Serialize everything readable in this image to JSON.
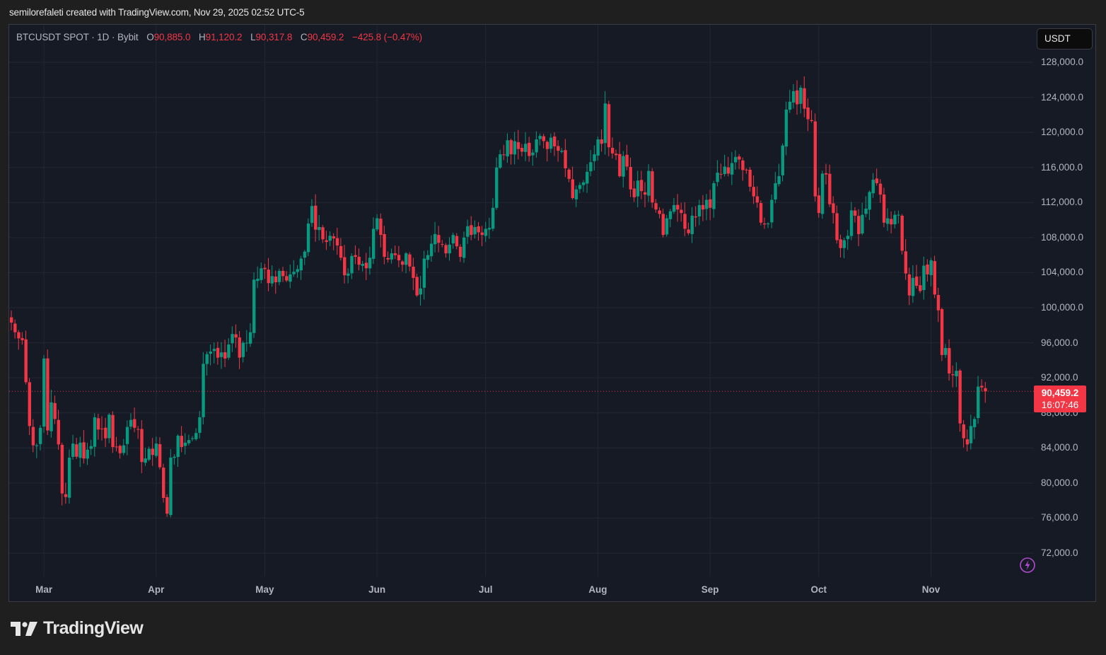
{
  "caption": "semilorefaleti created with TradingView.com, Nov 29, 2025 02:52 UTC-5",
  "legend": {
    "symbol": "BTCUSDT SPOT · 1D · Bybit",
    "open_label": "O",
    "open": "90,885.0",
    "high_label": "H",
    "high": "91,120.2",
    "low_label": "L",
    "low": "90,317.8",
    "close_label": "C",
    "close": "90,459.2",
    "change": "−425.8 (−0.47%)"
  },
  "currency_button": "USDT",
  "last_price": {
    "price": "90,459.2",
    "countdown": "16:07:46"
  },
  "logo_text": "TradingView",
  "colors": {
    "up": "#089981",
    "down": "#f23645",
    "background": "#161a25",
    "grid": "#242733",
    "text": "#b2b5be",
    "accent": "#9c27b0"
  },
  "chart_data": {
    "type": "candlestick",
    "title": "BTCUSDT SPOT · 1D · Bybit",
    "xlabel": "",
    "ylabel": "USDT",
    "ylim": [
      69500,
      131000
    ],
    "grid": true,
    "y_ticks": [
      "128,000.0",
      "124,000.0",
      "120,000.0",
      "116,000.0",
      "112,000.0",
      "108,000.0",
      "104,000.0",
      "100,000.0",
      "96,000.0",
      "92,000.0",
      "88,000.0",
      "84,000.0",
      "80,000.0",
      "76,000.0",
      "72,000.0"
    ],
    "x_ticks": [
      "Mar",
      "Apr",
      "May",
      "Jun",
      "Jul",
      "Aug",
      "Sep",
      "Oct",
      "Nov"
    ],
    "start_date": "2025-02-20",
    "end_date": "2025-11-29",
    "last_close": 90459.2,
    "closes": [
      98300,
      97200,
      96500,
      96300,
      91500,
      86500,
      84300,
      84300,
      86300,
      94200,
      86000,
      89200,
      87300,
      84400,
      78800,
      78400,
      82900,
      84500,
      83000,
      84600,
      82800,
      83800,
      84200,
      87500,
      86100,
      86200,
      85100,
      87800,
      84100,
      84100,
      83400,
      84300,
      86400,
      87200,
      86300,
      86100,
      82400,
      82800,
      83900,
      83200,
      84500,
      81800,
      78300,
      76500,
      82900,
      83000,
      85400,
      84100,
      84600,
      84900,
      85100,
      85700,
      87500,
      93600,
      94700,
      95000,
      95300,
      94300,
      94900,
      94200,
      95800,
      97000,
      96600,
      94300,
      96000,
      96000,
      97200,
      103200,
      103300,
      104500,
      104400,
      102800,
      103600,
      102900,
      104200,
      103600,
      103100,
      103800,
      104100,
      104400,
      105600,
      106400,
      109600,
      111600,
      108900,
      109200,
      107800,
      107500,
      108200,
      107900,
      107100,
      105700,
      103700,
      103900,
      105900,
      105800,
      104900,
      105000,
      104500,
      105700,
      109000,
      110200,
      108300,
      105800,
      105500,
      106200,
      106000,
      105400,
      104900,
      106200,
      104700,
      103400,
      101400,
      102200,
      105600,
      106000,
      107300,
      108400,
      107400,
      107200,
      106200,
      107200,
      108300,
      107000,
      105800,
      108000,
      109300,
      108300,
      109200,
      108600,
      108300,
      109000,
      109100,
      111400,
      116000,
      117500,
      117400,
      119100,
      117500,
      119000,
      118100,
      117800,
      118700,
      117300,
      117700,
      119200,
      119600,
      119000,
      118100,
      119400,
      118400,
      117900,
      117900,
      115900,
      114700,
      112500,
      113500,
      114000,
      114300,
      115500,
      116600,
      117500,
      119200,
      118700,
      123300,
      118300,
      117600,
      117400,
      115000,
      117300,
      116100,
      113500,
      112600,
      114500,
      113300,
      112900,
      115600,
      112000,
      111200,
      110700,
      108300,
      110200,
      111000,
      111700,
      111200,
      110800,
      109000,
      108500,
      110500,
      110300,
      111700,
      111200,
      112300,
      111400,
      114200,
      115400,
      115200,
      116100,
      115300,
      116500,
      117200,
      116900,
      115700,
      115700,
      113800,
      112700,
      112000,
      109700,
      109500,
      109600,
      112300,
      114200,
      115000,
      118500,
      122600,
      123500,
      124700,
      123200,
      125100,
      122700,
      121500,
      121300,
      112700,
      110800,
      115300,
      115200,
      111800,
      110800,
      107700,
      106800,
      107700,
      108200,
      111100,
      110500,
      108400,
      110600,
      111300,
      113200,
      114600,
      114200,
      112900,
      109700,
      110200,
      109500,
      110600,
      110600,
      106500,
      103900,
      101400,
      103400,
      102500,
      101900,
      104800,
      103800,
      105400,
      101500,
      99700,
      94600,
      95400,
      92500,
      92300,
      92800,
      86800,
      85100,
      84400,
      86500,
      87300,
      91000,
      90900,
      90459
    ],
    "month_day_offsets": {
      "Mar": 9,
      "Apr": 40,
      "May": 70,
      "Jun": 101,
      "Jul": 131,
      "Aug": 162,
      "Sep": 193,
      "Oct": 223,
      "Nov": 254
    }
  }
}
